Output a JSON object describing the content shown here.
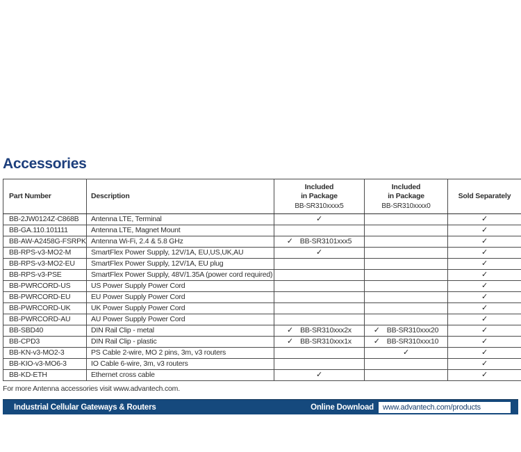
{
  "page": {
    "title": "Accessories",
    "footnote": "For more Antenna accessories visit www.advantech.com."
  },
  "colors": {
    "brand_navy": "#15497D",
    "title_blue": "#1C3E7C",
    "url_text": "#1A406E",
    "table_border": "#4A4A4A",
    "body_text": "#2E2E2E"
  },
  "table": {
    "check_symbol": "✓",
    "columns": [
      {
        "id": "part",
        "label": "Part Number",
        "sub": ""
      },
      {
        "id": "desc",
        "label": "Description",
        "sub": ""
      },
      {
        "id": "pkg5",
        "label": "Included\nin Package",
        "sub": "BB-SR310xxxx5"
      },
      {
        "id": "pkg0",
        "label": "Included\nin Package",
        "sub": "BB-SR310xxxx0"
      },
      {
        "id": "sold",
        "label": "Sold Separately",
        "sub": ""
      }
    ],
    "rows": [
      {
        "part": "BB-2JW0124Z-C868B",
        "desc": "Antenna LTE, Terminal",
        "pkg5_check": true,
        "pkg5_label": "",
        "pkg0_check": false,
        "pkg0_label": "",
        "sold_check": true
      },
      {
        "part": "BB-GA.110.101111",
        "desc": "Antenna LTE, Magnet Mount",
        "pkg5_check": false,
        "pkg5_label": "",
        "pkg0_check": false,
        "pkg0_label": "",
        "sold_check": true
      },
      {
        "part": "BB-AW-A2458G-FSRPK",
        "desc": "Antenna Wi-Fi, 2.4 & 5.8 GHz",
        "pkg5_check": true,
        "pkg5_label": "BB-SR3101xxx5",
        "pkg0_check": false,
        "pkg0_label": "",
        "sold_check": true
      },
      {
        "part": "BB-RPS-v3-MO2-M",
        "desc": "SmartFlex Power Supply, 12V/1A, EU,US,UK,AU",
        "pkg5_check": true,
        "pkg5_label": "",
        "pkg0_check": false,
        "pkg0_label": "",
        "sold_check": true
      },
      {
        "part": "BB-RPS-v3-MO2-EU",
        "desc": "SmartFlex Power Supply, 12V/1A, EU plug",
        "pkg5_check": false,
        "pkg5_label": "",
        "pkg0_check": false,
        "pkg0_label": "",
        "sold_check": true
      },
      {
        "part": "BB-RPS-v3-PSE",
        "desc": "SmartFlex Power Supply, 48V/1.35A (power cord required)",
        "pkg5_check": false,
        "pkg5_label": "",
        "pkg0_check": false,
        "pkg0_label": "",
        "sold_check": true
      },
      {
        "part": "BB-PWRCORD-US",
        "desc": "US Power Supply Power Cord",
        "pkg5_check": false,
        "pkg5_label": "",
        "pkg0_check": false,
        "pkg0_label": "",
        "sold_check": true
      },
      {
        "part": "BB-PWRCORD-EU",
        "desc": "EU Power Supply Power Cord",
        "pkg5_check": false,
        "pkg5_label": "",
        "pkg0_check": false,
        "pkg0_label": "",
        "sold_check": true
      },
      {
        "part": "BB-PWRCORD-UK",
        "desc": "UK Power Supply Power Cord",
        "pkg5_check": false,
        "pkg5_label": "",
        "pkg0_check": false,
        "pkg0_label": "",
        "sold_check": true
      },
      {
        "part": "BB-PWRCORD-AU",
        "desc": "AU Power Supply Power Cord",
        "pkg5_check": false,
        "pkg5_label": "",
        "pkg0_check": false,
        "pkg0_label": "",
        "sold_check": true
      },
      {
        "part": "BB-SBD40",
        "desc": "DIN Rail Clip - metal",
        "pkg5_check": true,
        "pkg5_label": "BB-SR310xxx2x",
        "pkg0_check": true,
        "pkg0_label": "BB-SR310xxx20",
        "sold_check": true
      },
      {
        "part": "BB-CPD3",
        "desc": "DIN Rail Clip - plastic",
        "pkg5_check": true,
        "pkg5_label": "BB-SR310xxx1x",
        "pkg0_check": true,
        "pkg0_label": "BB-SR310xxx10",
        "sold_check": true
      },
      {
        "part": "BB-KN-v3-MO2-3",
        "desc": "PS Cable 2-wire, MO 2 pins, 3m, v3 routers",
        "pkg5_check": false,
        "pkg5_label": "",
        "pkg0_check": true,
        "pkg0_label": "",
        "sold_check": true
      },
      {
        "part": "BB-KIO-v3-MO6-3",
        "desc": "IO Cable 6-wire, 3m, v3 routers",
        "pkg5_check": false,
        "pkg5_label": "",
        "pkg0_check": false,
        "pkg0_label": "",
        "sold_check": true
      },
      {
        "part": "BB-KD-ETH",
        "desc": "Ethernet cross cable",
        "pkg5_check": true,
        "pkg5_label": "",
        "pkg0_check": false,
        "pkg0_label": "",
        "sold_check": true
      }
    ]
  },
  "footer": {
    "product_line": "Industrial Cellular Gateways & Routers",
    "download_label": "Online Download",
    "download_url": "www.advantech.com/products"
  }
}
